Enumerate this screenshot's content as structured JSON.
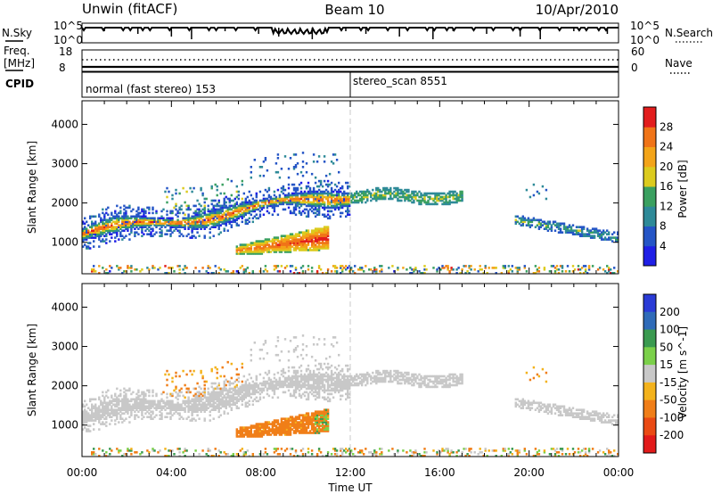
{
  "header": {
    "station": "Unwin (fitACF)",
    "beam": "Beam 10",
    "date": "10/Apr/2010"
  },
  "top_panels": {
    "nsky_label": "N.Sky",
    "nsearch_label": "N.Search",
    "nsky_ticks": [
      "10^5",
      "10^0"
    ],
    "freq_label": "Freq.",
    "freq_unit": "[MHz]",
    "freq_ticks": [
      "18",
      "8"
    ],
    "nave_label": "Nave",
    "nave_ticks": [
      "60",
      "0"
    ],
    "cpid_label": "CPID",
    "cpid_segments": [
      {
        "text": "normal (fast stereo) 153",
        "start_hour": 0
      },
      {
        "text": "stereo_scan 8551",
        "start_hour": 12
      }
    ]
  },
  "chart_data": [
    {
      "type": "heatmap",
      "title": "",
      "xlabel": "Time UT",
      "ylabel": "Slant Range [km]",
      "xlim": [
        0,
        24
      ],
      "ylim": [
        200,
        4600
      ],
      "x_ticks": [
        "00:00",
        "04:00",
        "08:00",
        "12:00",
        "16:00",
        "20:00",
        "00:00"
      ],
      "y_ticks": [
        1000,
        2000,
        3000,
        4000
      ],
      "colorbar": {
        "label": "Power [dB]",
        "ticks": [
          4,
          8,
          12,
          16,
          20,
          24,
          28
        ],
        "range": [
          0,
          32
        ],
        "colors": [
          "#1f1fe6",
          "#2555c6",
          "#2e8a98",
          "#3aa060",
          "#dccb1e",
          "#f3a419",
          "#f07418",
          "#e21d1d"
        ]
      },
      "features": [
        {
          "name": "main-band",
          "hours": [
            0,
            12
          ],
          "range_km": [
            1100,
            2250
          ],
          "peak_db": 26
        },
        {
          "name": "near-echo",
          "hours": [
            6.8,
            11
          ],
          "range_km": [
            650,
            1400
          ],
          "peak_db": 30
        },
        {
          "name": "upper-band",
          "hours": [
            12,
            17
          ],
          "range_km": [
            2000,
            2300
          ],
          "peak_db": 18
        },
        {
          "name": "late-band",
          "hours": [
            19.3,
            24
          ],
          "range_km": [
            1000,
            1650
          ],
          "peak_db": 20
        }
      ]
    },
    {
      "type": "heatmap",
      "title": "",
      "xlabel": "Time UT",
      "ylabel": "Slant Range [km]",
      "xlim": [
        0,
        24
      ],
      "ylim": [
        200,
        4600
      ],
      "x_ticks": [
        "00:00",
        "04:00",
        "08:00",
        "12:00",
        "16:00",
        "20:00",
        "00:00"
      ],
      "y_ticks": [
        1000,
        2000,
        3000,
        4000
      ],
      "colorbar": {
        "label": "Velocity [m s^-1]",
        "ticks": [
          200,
          100,
          50,
          15,
          -15,
          -50,
          -100,
          -200
        ],
        "colors": [
          "#2a3bd6",
          "#2f6bb8",
          "#3a9a50",
          "#7bd04a",
          "#c8c8c8",
          "#f3b21c",
          "#f07e18",
          "#ea4a14",
          "#e21a1a"
        ]
      },
      "features": [
        {
          "name": "main-band",
          "hours": [
            0,
            12
          ],
          "range_km": [
            1100,
            2250
          ],
          "velocity_ms": 0
        },
        {
          "name": "near-echo",
          "hours": [
            6.8,
            11
          ],
          "range_km": [
            650,
            1400
          ],
          "velocity_ms": -60
        },
        {
          "name": "upper-band",
          "hours": [
            12,
            17
          ],
          "range_km": [
            2000,
            2300
          ],
          "velocity_ms": 0
        },
        {
          "name": "late-band",
          "hours": [
            19.3,
            24
          ],
          "range_km": [
            1000,
            1650
          ],
          "velocity_ms": 0
        }
      ]
    }
  ]
}
